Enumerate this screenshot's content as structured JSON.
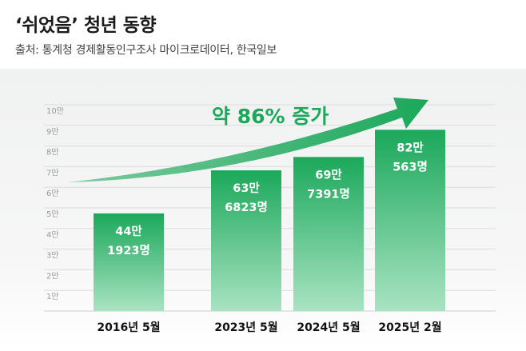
{
  "header": {
    "title": "‘쉬었음’ 청년 동향",
    "source": "출처: 통계청 경제활동인구조사 마이크로데이터, 한국일보"
  },
  "chart_data": {
    "type": "bar",
    "categories": [
      "2016년 5월",
      "2023년 5월",
      "2024년 5월",
      "2025년 2월"
    ],
    "values": [
      441923,
      636823,
      697391,
      820563
    ],
    "value_labels": [
      [
        "44만",
        "1923명"
      ],
      [
        "63만",
        "6823명"
      ],
      [
        "69만",
        "7391명"
      ],
      [
        "82만",
        "563명"
      ]
    ],
    "y_ticks": [
      {
        "value": 10000,
        "label": "1만"
      },
      {
        "value": 20000,
        "label": "2만"
      },
      {
        "value": 30000,
        "label": "3만"
      },
      {
        "value": 40000,
        "label": "4만"
      },
      {
        "value": 50000,
        "label": "5만"
      },
      {
        "value": 60000,
        "label": "6만"
      },
      {
        "value": 70000,
        "label": "7만"
      },
      {
        "value": 80000,
        "label": "8만"
      },
      {
        "value": 90000,
        "label": "9만"
      },
      {
        "value": 100000,
        "label": "10만"
      }
    ],
    "ylim": [
      0,
      100000
    ],
    "grid": true,
    "annotation": "약 86% 증가",
    "colors": {
      "bar_top": "#1ba85a",
      "bar_bottom": "#a9e3c2",
      "arrow": "#1ba85a"
    }
  }
}
